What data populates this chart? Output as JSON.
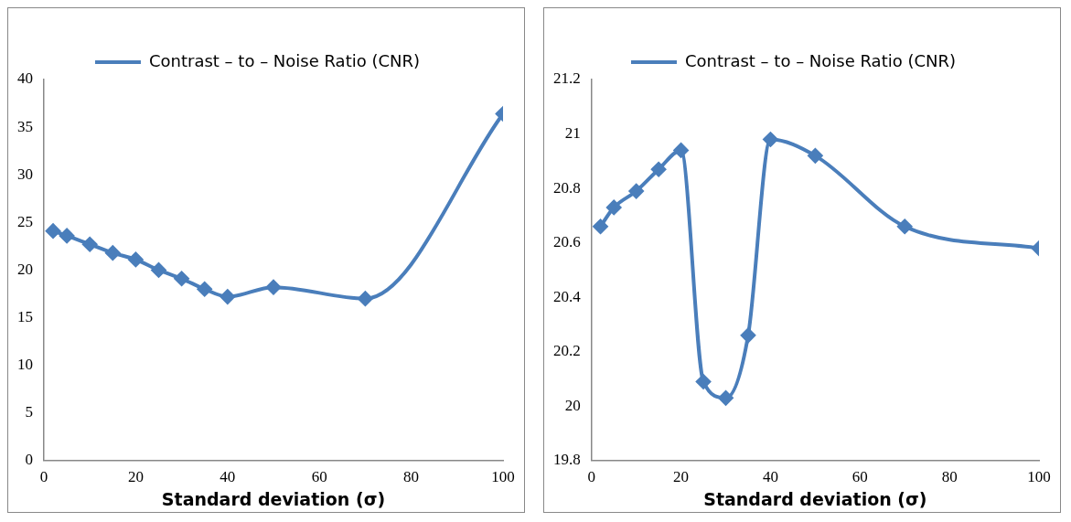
{
  "chart_data": [
    {
      "type": "line",
      "xlabel": "Standard deviation (σ)",
      "x": [
        2,
        5,
        10,
        15,
        20,
        25,
        30,
        35,
        40,
        50,
        70,
        100
      ],
      "series": [
        {
          "name": "Contrast – to – Noise Ratio (CNR)",
          "color": "#4a7ebb",
          "values": [
            24.1,
            23.6,
            22.7,
            21.8,
            21.1,
            20.0,
            19.1,
            18.0,
            17.2,
            18.2,
            17.0,
            36.4
          ]
        }
      ],
      "xlim": [
        0,
        100
      ],
      "xticks": [
        0,
        20,
        40,
        60,
        80,
        100
      ],
      "ylim": [
        0,
        40
      ],
      "yticks": [
        0,
        5,
        10,
        15,
        20,
        25,
        30,
        35,
        40
      ],
      "grid": false,
      "legend": "top",
      "marker": "diamond",
      "line_style": "solid"
    },
    {
      "type": "line",
      "xlabel": "Standard deviation (σ)",
      "x": [
        2,
        5,
        10,
        15,
        20,
        25,
        30,
        35,
        40,
        50,
        70,
        100
      ],
      "series": [
        {
          "name": "Contrast – to – Noise Ratio (CNR)",
          "color": "#4a7ebb",
          "values": [
            20.66,
            20.73,
            20.79,
            20.87,
            20.94,
            20.09,
            20.03,
            20.26,
            20.98,
            20.92,
            20.66,
            20.58
          ]
        }
      ],
      "xlim": [
        0,
        100
      ],
      "xticks": [
        0,
        20,
        40,
        60,
        80,
        100
      ],
      "ylim": [
        19.8,
        21.2
      ],
      "yticks": [
        19.8,
        20,
        20.2,
        20.4,
        20.6,
        20.8,
        21,
        21.2
      ],
      "grid": false,
      "legend": "top",
      "marker": "diamond",
      "line_style": "solid"
    }
  ]
}
